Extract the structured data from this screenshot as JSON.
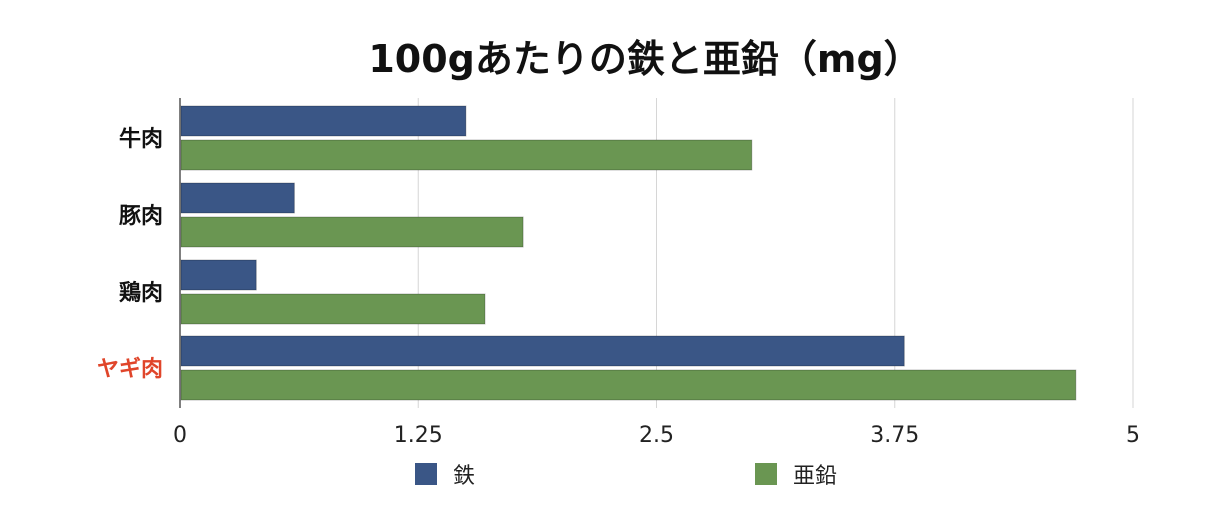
{
  "chart_data": {
    "type": "bar",
    "orientation": "horizontal",
    "title": "100gあたりの鉄と亜鉛（mg）",
    "categories": [
      "牛肉",
      "豚肉",
      "鶏肉",
      "ヤギ肉"
    ],
    "highlight_category": "ヤギ肉",
    "highlight_color": "#e0452a",
    "series": [
      {
        "name": "鉄",
        "color": "#3a5686",
        "values": [
          1.5,
          0.6,
          0.4,
          3.8
        ]
      },
      {
        "name": "亜鉛",
        "color": "#6a9652",
        "values": [
          3.0,
          1.8,
          1.6,
          4.7
        ]
      }
    ],
    "xlim": [
      0,
      5
    ],
    "xticks": [
      "0",
      "1.25",
      "2.5",
      "3.75",
      "5"
    ],
    "xtick_values": [
      0,
      1.25,
      2.5,
      3.75,
      5
    ],
    "grid": true,
    "legend_position": "bottom"
  }
}
